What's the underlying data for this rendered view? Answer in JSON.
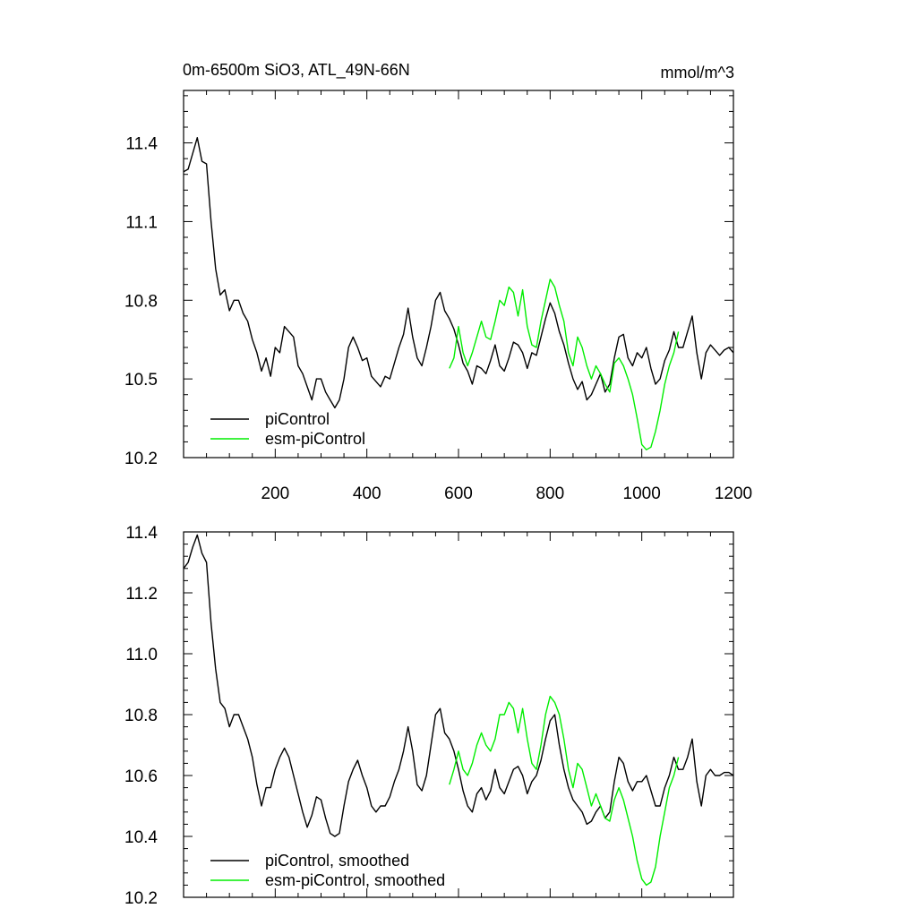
{
  "chart_data": [
    {
      "type": "line",
      "title": "0m-6500m SiO3, ATL_49N-66N",
      "units": "mmol/m^3",
      "xlabel": "",
      "ylabel": "",
      "xlim": [
        0,
        1200
      ],
      "ylim": [
        10.2,
        11.6
      ],
      "x_ticks": [
        200,
        400,
        600,
        800,
        1000,
        1200
      ],
      "y_ticks": [
        10.2,
        10.5,
        10.8,
        11.1,
        11.4
      ],
      "legend_position": "bottom-left",
      "series": [
        {
          "name": "piControl",
          "color": "#000000",
          "x": [
            0,
            10,
            20,
            30,
            40,
            50,
            60,
            70,
            80,
            90,
            100,
            110,
            120,
            130,
            140,
            150,
            160,
            170,
            180,
            190,
            200,
            210,
            220,
            230,
            240,
            250,
            260,
            270,
            280,
            290,
            300,
            310,
            320,
            330,
            340,
            350,
            360,
            370,
            380,
            390,
            400,
            410,
            420,
            430,
            440,
            450,
            460,
            470,
            480,
            490,
            500,
            510,
            520,
            530,
            540,
            550,
            560,
            570,
            580,
            590,
            600,
            610,
            620,
            630,
            640,
            650,
            660,
            670,
            680,
            690,
            700,
            710,
            720,
            730,
            740,
            750,
            760,
            770,
            780,
            790,
            800,
            810,
            820,
            830,
            840,
            850,
            860,
            870,
            880,
            890,
            900,
            910,
            920,
            930,
            940,
            950,
            960,
            970,
            980,
            990,
            1000,
            1010,
            1020,
            1030,
            1040,
            1050,
            1060,
            1070,
            1080,
            1090,
            1100,
            1110,
            1120,
            1130,
            1140,
            1150,
            1160,
            1170,
            1180,
            1190,
            1200
          ],
          "values": [
            11.29,
            11.3,
            11.36,
            11.42,
            11.33,
            11.32,
            11.1,
            10.92,
            10.82,
            10.84,
            10.76,
            10.8,
            10.8,
            10.75,
            10.72,
            10.65,
            10.6,
            10.53,
            10.58,
            10.51,
            10.62,
            10.6,
            10.7,
            10.68,
            10.66,
            10.55,
            10.52,
            10.47,
            10.42,
            10.5,
            10.5,
            10.45,
            10.42,
            10.39,
            10.42,
            10.5,
            10.62,
            10.66,
            10.62,
            10.57,
            10.58,
            10.51,
            10.49,
            10.47,
            10.51,
            10.5,
            10.56,
            10.62,
            10.67,
            10.77,
            10.66,
            10.58,
            10.55,
            10.62,
            10.7,
            10.8,
            10.83,
            10.76,
            10.73,
            10.69,
            10.63,
            10.56,
            10.53,
            10.48,
            10.55,
            10.54,
            10.52,
            10.57,
            10.63,
            10.55,
            10.53,
            10.58,
            10.64,
            10.63,
            10.6,
            10.54,
            10.6,
            10.59,
            10.66,
            10.73,
            10.79,
            10.75,
            10.68,
            10.63,
            10.56,
            10.5,
            10.46,
            10.49,
            10.42,
            10.44,
            10.48,
            10.52,
            10.45,
            10.48,
            10.58,
            10.66,
            10.67,
            10.58,
            10.55,
            10.6,
            10.58,
            10.62,
            10.54,
            10.48,
            10.5,
            10.57,
            10.61,
            10.68,
            10.62,
            10.62,
            10.68,
            10.74,
            10.6,
            10.5,
            10.6,
            10.63,
            10.61,
            10.59,
            10.61,
            10.62,
            10.6
          ]
        },
        {
          "name": "esm-piControl",
          "color": "#00ee00",
          "x": [
            580,
            590,
            600,
            610,
            620,
            630,
            640,
            650,
            660,
            670,
            680,
            690,
            700,
            710,
            720,
            730,
            740,
            750,
            760,
            770,
            780,
            790,
            800,
            810,
            820,
            830,
            840,
            850,
            860,
            870,
            880,
            890,
            900,
            910,
            920,
            930,
            940,
            950,
            960,
            970,
            980,
            990,
            1000,
            1010,
            1020,
            1030,
            1040,
            1050,
            1060,
            1070,
            1080
          ],
          "values": [
            10.54,
            10.58,
            10.7,
            10.6,
            10.55,
            10.6,
            10.66,
            10.72,
            10.66,
            10.65,
            10.72,
            10.8,
            10.78,
            10.85,
            10.83,
            10.74,
            10.84,
            10.7,
            10.63,
            10.62,
            10.72,
            10.8,
            10.88,
            10.85,
            10.78,
            10.72,
            10.6,
            10.55,
            10.66,
            10.62,
            10.55,
            10.5,
            10.55,
            10.52,
            10.48,
            10.45,
            10.56,
            10.58,
            10.55,
            10.5,
            10.44,
            10.35,
            10.25,
            10.23,
            10.24,
            10.3,
            10.38,
            10.48,
            10.55,
            10.6,
            10.68
          ]
        }
      ]
    },
    {
      "type": "line",
      "title": "",
      "xlabel": "",
      "ylabel": "",
      "xlim": [
        0,
        1200
      ],
      "ylim": [
        10.2,
        11.4
      ],
      "x_ticks": [
        200,
        400,
        600,
        800,
        1000,
        1200
      ],
      "y_ticks": [
        10.2,
        10.4,
        10.6,
        10.8,
        11.0,
        11.2,
        11.4
      ],
      "legend_position": "bottom-left",
      "series": [
        {
          "name": "piControl, smoothed",
          "color": "#000000",
          "x": [
            0,
            10,
            20,
            30,
            40,
            50,
            60,
            70,
            80,
            90,
            100,
            110,
            120,
            130,
            140,
            150,
            160,
            170,
            180,
            190,
            200,
            210,
            220,
            230,
            240,
            250,
            260,
            270,
            280,
            290,
            300,
            310,
            320,
            330,
            340,
            350,
            360,
            370,
            380,
            390,
            400,
            410,
            420,
            430,
            440,
            450,
            460,
            470,
            480,
            490,
            500,
            510,
            520,
            530,
            540,
            550,
            560,
            570,
            580,
            590,
            600,
            610,
            620,
            630,
            640,
            650,
            660,
            670,
            680,
            690,
            700,
            710,
            720,
            730,
            740,
            750,
            760,
            770,
            780,
            790,
            800,
            810,
            820,
            830,
            840,
            850,
            860,
            870,
            880,
            890,
            900,
            910,
            920,
            930,
            940,
            950,
            960,
            970,
            980,
            990,
            1000,
            1010,
            1020,
            1030,
            1040,
            1050,
            1060,
            1070,
            1080,
            1090,
            1100,
            1110,
            1120,
            1130,
            1140,
            1150,
            1160,
            1170,
            1180,
            1190,
            1200
          ],
          "values": [
            11.28,
            11.3,
            11.35,
            11.39,
            11.33,
            11.3,
            11.1,
            10.95,
            10.84,
            10.82,
            10.76,
            10.8,
            10.8,
            10.76,
            10.72,
            10.66,
            10.57,
            10.5,
            10.56,
            10.56,
            10.62,
            10.66,
            10.69,
            10.66,
            10.6,
            10.54,
            10.48,
            10.43,
            10.47,
            10.53,
            10.52,
            10.46,
            10.41,
            10.4,
            10.41,
            10.5,
            10.58,
            10.62,
            10.65,
            10.6,
            10.56,
            10.5,
            10.48,
            10.5,
            10.5,
            10.53,
            10.58,
            10.62,
            10.68,
            10.76,
            10.68,
            10.57,
            10.55,
            10.6,
            10.7,
            10.8,
            10.82,
            10.74,
            10.72,
            10.68,
            10.62,
            10.55,
            10.5,
            10.48,
            10.54,
            10.56,
            10.52,
            10.55,
            10.62,
            10.56,
            10.54,
            10.58,
            10.62,
            10.63,
            10.6,
            10.54,
            10.58,
            10.6,
            10.65,
            10.72,
            10.78,
            10.8,
            10.7,
            10.62,
            10.56,
            10.52,
            10.5,
            10.48,
            10.44,
            10.45,
            10.48,
            10.5,
            10.46,
            10.48,
            10.58,
            10.66,
            10.64,
            10.58,
            10.55,
            10.58,
            10.58,
            10.6,
            10.55,
            10.5,
            10.5,
            10.56,
            10.6,
            10.66,
            10.62,
            10.62,
            10.66,
            10.72,
            10.58,
            10.5,
            10.6,
            10.62,
            10.6,
            10.6,
            10.61,
            10.61,
            10.6
          ]
        },
        {
          "name": "esm-piControl, smoothed",
          "color": "#00ee00",
          "x": [
            580,
            590,
            600,
            610,
            620,
            630,
            640,
            650,
            660,
            670,
            680,
            690,
            700,
            710,
            720,
            730,
            740,
            750,
            760,
            770,
            780,
            790,
            800,
            810,
            820,
            830,
            840,
            850,
            860,
            870,
            880,
            890,
            900,
            910,
            920,
            930,
            940,
            950,
            960,
            970,
            980,
            990,
            1000,
            1010,
            1020,
            1030,
            1040,
            1050,
            1060,
            1070,
            1080
          ],
          "values": [
            10.57,
            10.62,
            10.68,
            10.62,
            10.6,
            10.64,
            10.7,
            10.74,
            10.7,
            10.68,
            10.72,
            10.8,
            10.8,
            10.84,
            10.82,
            10.74,
            10.82,
            10.72,
            10.64,
            10.62,
            10.7,
            10.8,
            10.86,
            10.84,
            10.8,
            10.72,
            10.62,
            10.56,
            10.64,
            10.62,
            10.56,
            10.5,
            10.54,
            10.5,
            10.46,
            10.45,
            10.52,
            10.56,
            10.52,
            10.46,
            10.4,
            10.32,
            10.26,
            10.24,
            10.25,
            10.3,
            10.4,
            10.48,
            10.56,
            10.6,
            10.66
          ]
        }
      ]
    }
  ]
}
